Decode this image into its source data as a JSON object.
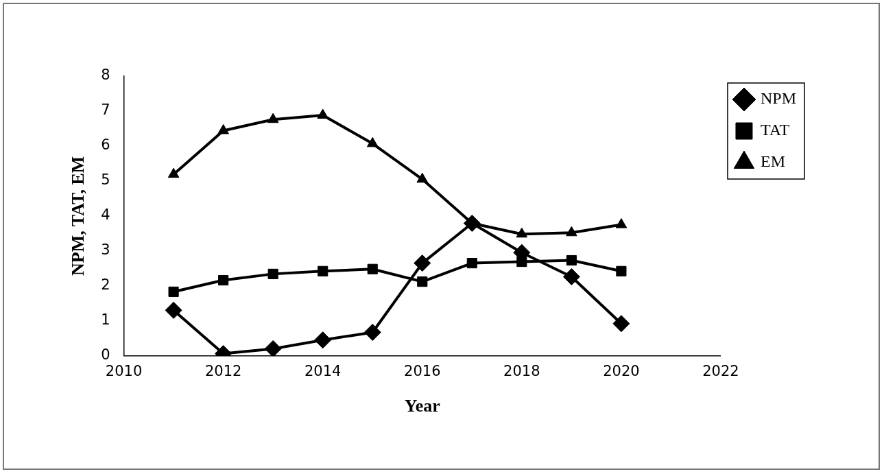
{
  "chart_data": {
    "type": "line",
    "xlabel": "Year",
    "ylabel": "NPM, TAT, EM",
    "x": [
      2011,
      2012,
      2013,
      2014,
      2015,
      2016,
      2017,
      2018,
      2019,
      2020
    ],
    "series": [
      {
        "name": "NPM",
        "color": "#000000",
        "marker": "diamond",
        "values": [
          1.3,
          0.06,
          0.2,
          0.45,
          0.67,
          2.65,
          3.79,
          2.95,
          2.26,
          0.92
        ]
      },
      {
        "name": "TAT",
        "color": "#000000",
        "marker": "square",
        "values": [
          1.83,
          2.16,
          2.34,
          2.42,
          2.48,
          2.12,
          2.65,
          2.69,
          2.73,
          2.42
        ]
      },
      {
        "name": "EM",
        "color": "#000000",
        "marker": "triangle",
        "values": [
          5.19,
          6.44,
          6.76,
          6.88,
          6.07,
          5.05,
          3.79,
          3.48,
          3.52,
          3.75
        ]
      }
    ],
    "xlim": [
      2010,
      2022
    ],
    "xticks": [
      2010,
      2012,
      2014,
      2016,
      2018,
      2020,
      2022
    ],
    "ylim": [
      0,
      8
    ],
    "yticks": [
      0,
      1,
      2,
      3,
      4,
      5,
      6,
      7,
      8
    ],
    "grid": false,
    "legend": "top right",
    "line_style": "solid"
  }
}
